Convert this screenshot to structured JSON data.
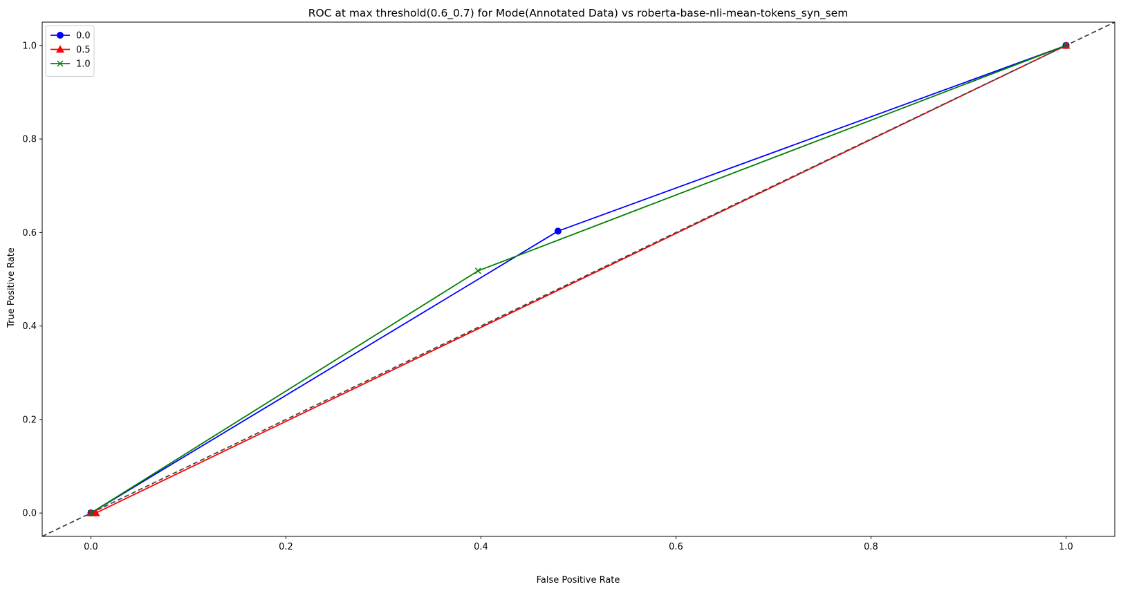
{
  "chart_data": {
    "type": "line",
    "title": "ROC at max threshold(0.6_0.7) for Mode(Annotated Data) vs roberta-base-nli-mean-tokens_syn_sem",
    "xlabel": "False Positive Rate",
    "ylabel": "True Positive Rate",
    "xlim": [
      -0.05,
      1.05
    ],
    "ylim": [
      -0.05,
      1.05
    ],
    "xticks": [
      0.0,
      0.2,
      0.4,
      0.6,
      0.8,
      1.0
    ],
    "xtick_labels": [
      "0.0",
      "0.2",
      "0.4",
      "0.6",
      "0.8",
      "1.0"
    ],
    "yticks": [
      0.0,
      0.2,
      0.4,
      0.6,
      0.8,
      1.0
    ],
    "ytick_labels": [
      "0.0",
      "0.2",
      "0.4",
      "0.6",
      "0.8",
      "1.0"
    ],
    "grid": false,
    "legend_position": "upper-left",
    "reference_line": {
      "style": "dashed",
      "color": "#444444",
      "x": [
        -0.05,
        1.05
      ],
      "y": [
        -0.05,
        1.05
      ]
    },
    "series": [
      {
        "name": "0.0",
        "color": "#0000ff",
        "marker": "circle",
        "x": [
          0.0,
          0.479,
          1.0
        ],
        "y": [
          0.0,
          0.603,
          1.0
        ]
      },
      {
        "name": "0.5",
        "color": "#ff0000",
        "marker": "triangle",
        "x": [
          0.0,
          0.005,
          1.0
        ],
        "y": [
          0.0,
          0.0,
          1.0
        ]
      },
      {
        "name": "1.0",
        "color": "#008000",
        "marker": "x",
        "x": [
          0.0,
          0.397,
          1.0
        ],
        "y": [
          0.0,
          0.518,
          1.0
        ]
      }
    ]
  }
}
